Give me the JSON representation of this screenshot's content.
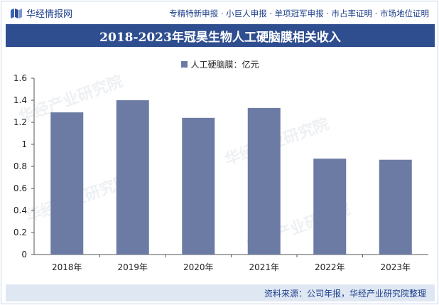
{
  "header": {
    "brand": "华经情报网",
    "nav": "专精特新申报 · 小巨人申报 · 单项冠军申报 · 市占率证明 · 市场地位证明"
  },
  "watermark": "华经产业研究院",
  "footer": {
    "source": "资料来源：公司年报，华经产业研究院整理"
  },
  "colors": {
    "bar": "#6b7ba3",
    "title_bg": "#2f4e8f",
    "footer_bg": "#dfe7f3"
  },
  "chart_data": {
    "type": "bar",
    "title": "2018-2023年冠昊生物人工硬脑膜相关收入",
    "legend": "人工硬脑膜：亿元",
    "categories": [
      "2018年",
      "2019年",
      "2020年",
      "2021年",
      "2022年",
      "2023年"
    ],
    "values": [
      1.29,
      1.4,
      1.24,
      1.33,
      0.87,
      0.86
    ],
    "yticks": [
      "0",
      "0.2",
      "0.4",
      "0.6",
      "0.8",
      "1",
      "1.2",
      "1.4",
      "1.6"
    ],
    "ylim": [
      0,
      1.6
    ],
    "xlabel": "",
    "ylabel": ""
  }
}
